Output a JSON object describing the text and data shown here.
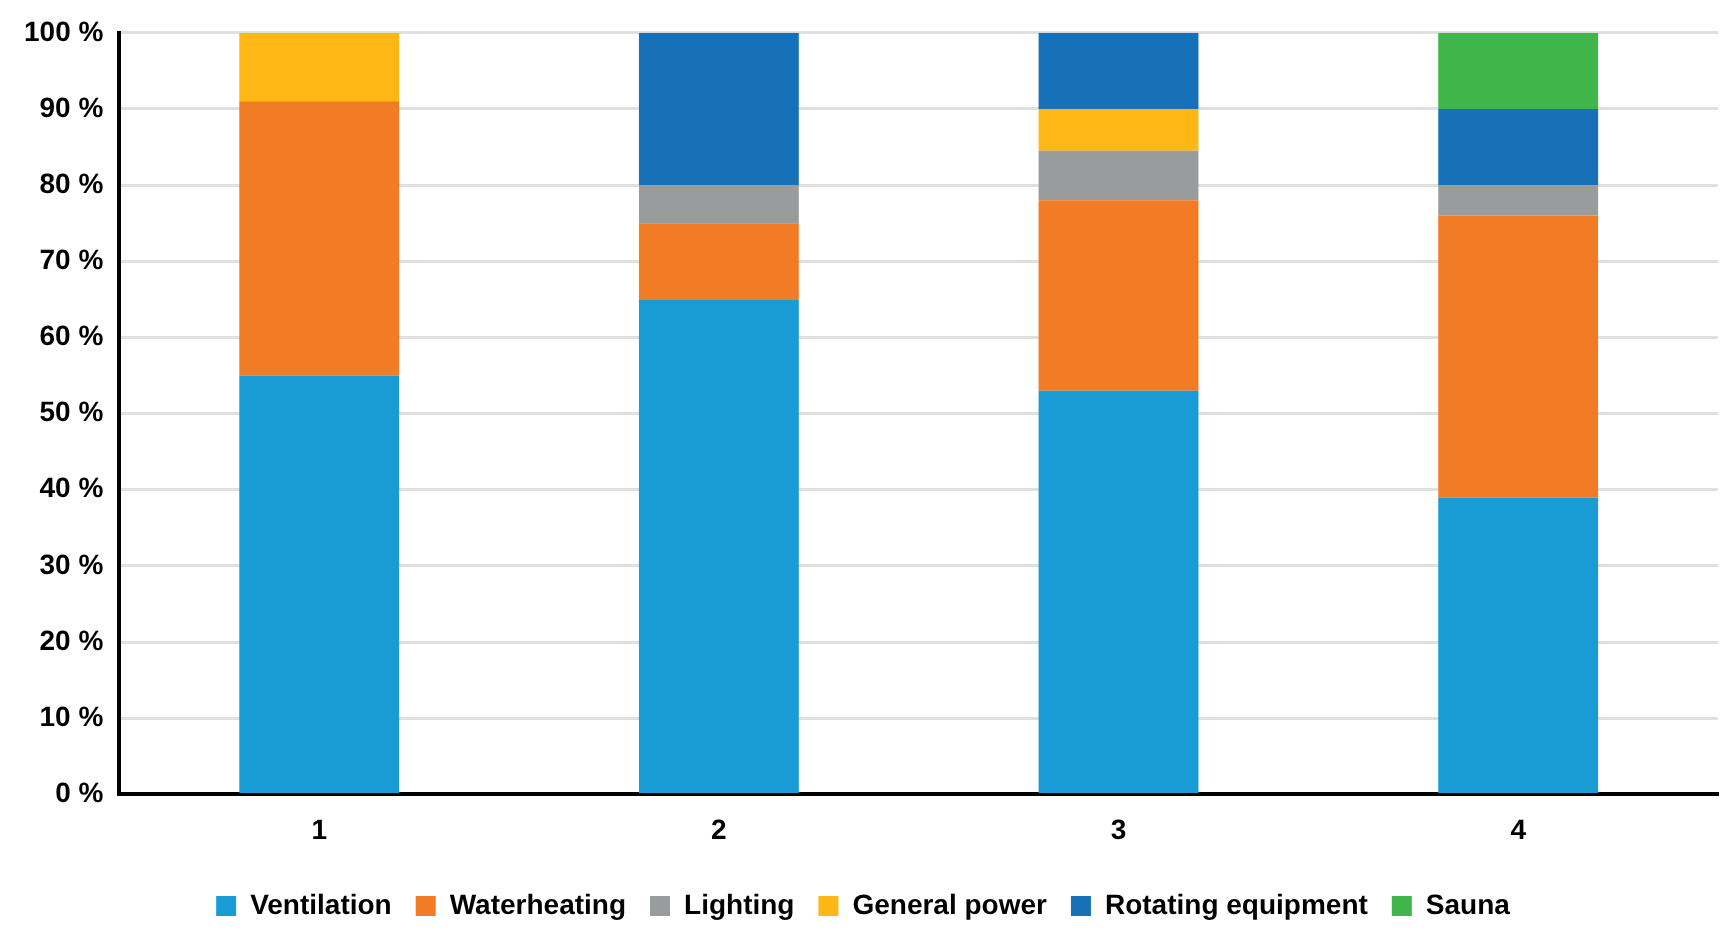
{
  "chart_data": {
    "type": "bar",
    "stacked": true,
    "categories": [
      "1",
      "2",
      "3",
      "4"
    ],
    "series": [
      {
        "name": "Ventilation",
        "color": "#199cd6",
        "values": [
          55,
          65,
          53,
          39
        ]
      },
      {
        "name": "Waterheating",
        "color": "#f27b26",
        "values": [
          36,
          10,
          25,
          37
        ]
      },
      {
        "name": "Lighting",
        "color": "#999c9c",
        "values": [
          null,
          5,
          6.5,
          4
        ]
      },
      {
        "name": "General power",
        "color": "#fdb717",
        "values": [
          9,
          null,
          5.5,
          null
        ]
      },
      {
        "name": "Rotating equipment",
        "color": "#1771b8",
        "values": [
          null,
          20,
          10,
          10
        ]
      },
      {
        "name": "Sauna",
        "color": "#40b54a",
        "values": [
          null,
          null,
          null,
          10
        ]
      }
    ],
    "ylim": [
      0,
      100
    ],
    "yticks": [
      {
        "value": 0,
        "label": "0 %"
      },
      {
        "value": 10,
        "label": "10 %"
      },
      {
        "value": 20,
        "label": "20 %"
      },
      {
        "value": 30,
        "label": "30 %"
      },
      {
        "value": 40,
        "label": "40 %"
      },
      {
        "value": 50,
        "label": "50 %"
      },
      {
        "value": 60,
        "label": "60 %"
      },
      {
        "value": 70,
        "label": "70 %"
      },
      {
        "value": 80,
        "label": "80 %"
      },
      {
        "value": 90,
        "label": "90 %"
      },
      {
        "value": 100,
        "label": "100 %"
      }
    ],
    "grid": "y",
    "legend": "bottom"
  }
}
